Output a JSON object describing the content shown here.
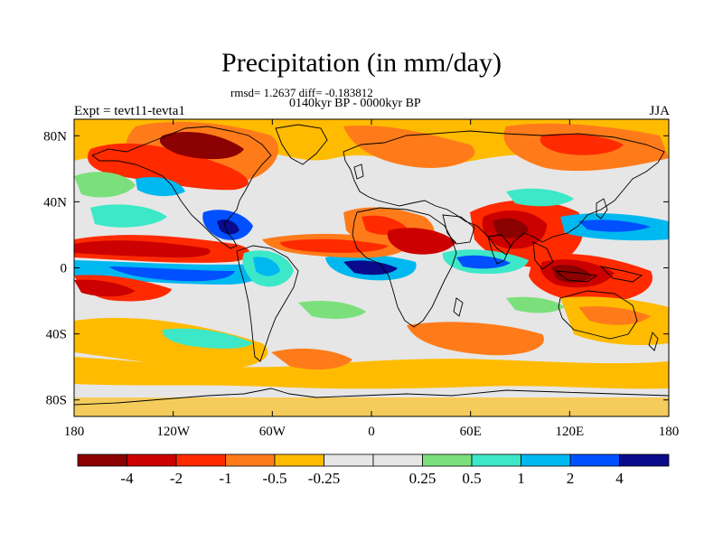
{
  "title": "Precipitation (in mm/day)",
  "subtitle_stats": "rmsd= 1.2637 diff= -0.183812",
  "subtitle_period": "0140kyr BP - 0000kyr BP",
  "left_label": "Expt = tevt11-tevta1",
  "right_label": "JJA",
  "lat_ticks": [
    {
      "label": "80N",
      "lat": 80
    },
    {
      "label": "40N",
      "lat": 40
    },
    {
      "label": "0",
      "lat": 0
    },
    {
      "label": "40S",
      "lat": -40
    },
    {
      "label": "80S",
      "lat": -80
    }
  ],
  "lon_ticks": [
    {
      "label": "180",
      "lon": -180
    },
    {
      "label": "120W",
      "lon": -120
    },
    {
      "label": "60W",
      "lon": -60
    },
    {
      "label": "0",
      "lon": 0
    },
    {
      "label": "60E",
      "lon": 60
    },
    {
      "label": "120E",
      "lon": 120
    },
    {
      "label": "180",
      "lon": 180
    }
  ],
  "colorbar": {
    "colors": [
      "#8b0000",
      "#cc0000",
      "#ff2a00",
      "#ff7b1a",
      "#ffbb00",
      "#e6e6e6",
      "#e6e6e6",
      "#7be07b",
      "#3ce8c8",
      "#00b8f0",
      "#0050ff",
      "#0a0a8c"
    ],
    "labels": [
      "-4",
      "-2",
      "-1",
      "-0.5",
      "-0.25",
      "0.25",
      "0.5",
      "1",
      "2",
      "4"
    ]
  },
  "colors": {
    "background": "#e6e6e6",
    "coastline": "#000000"
  }
}
